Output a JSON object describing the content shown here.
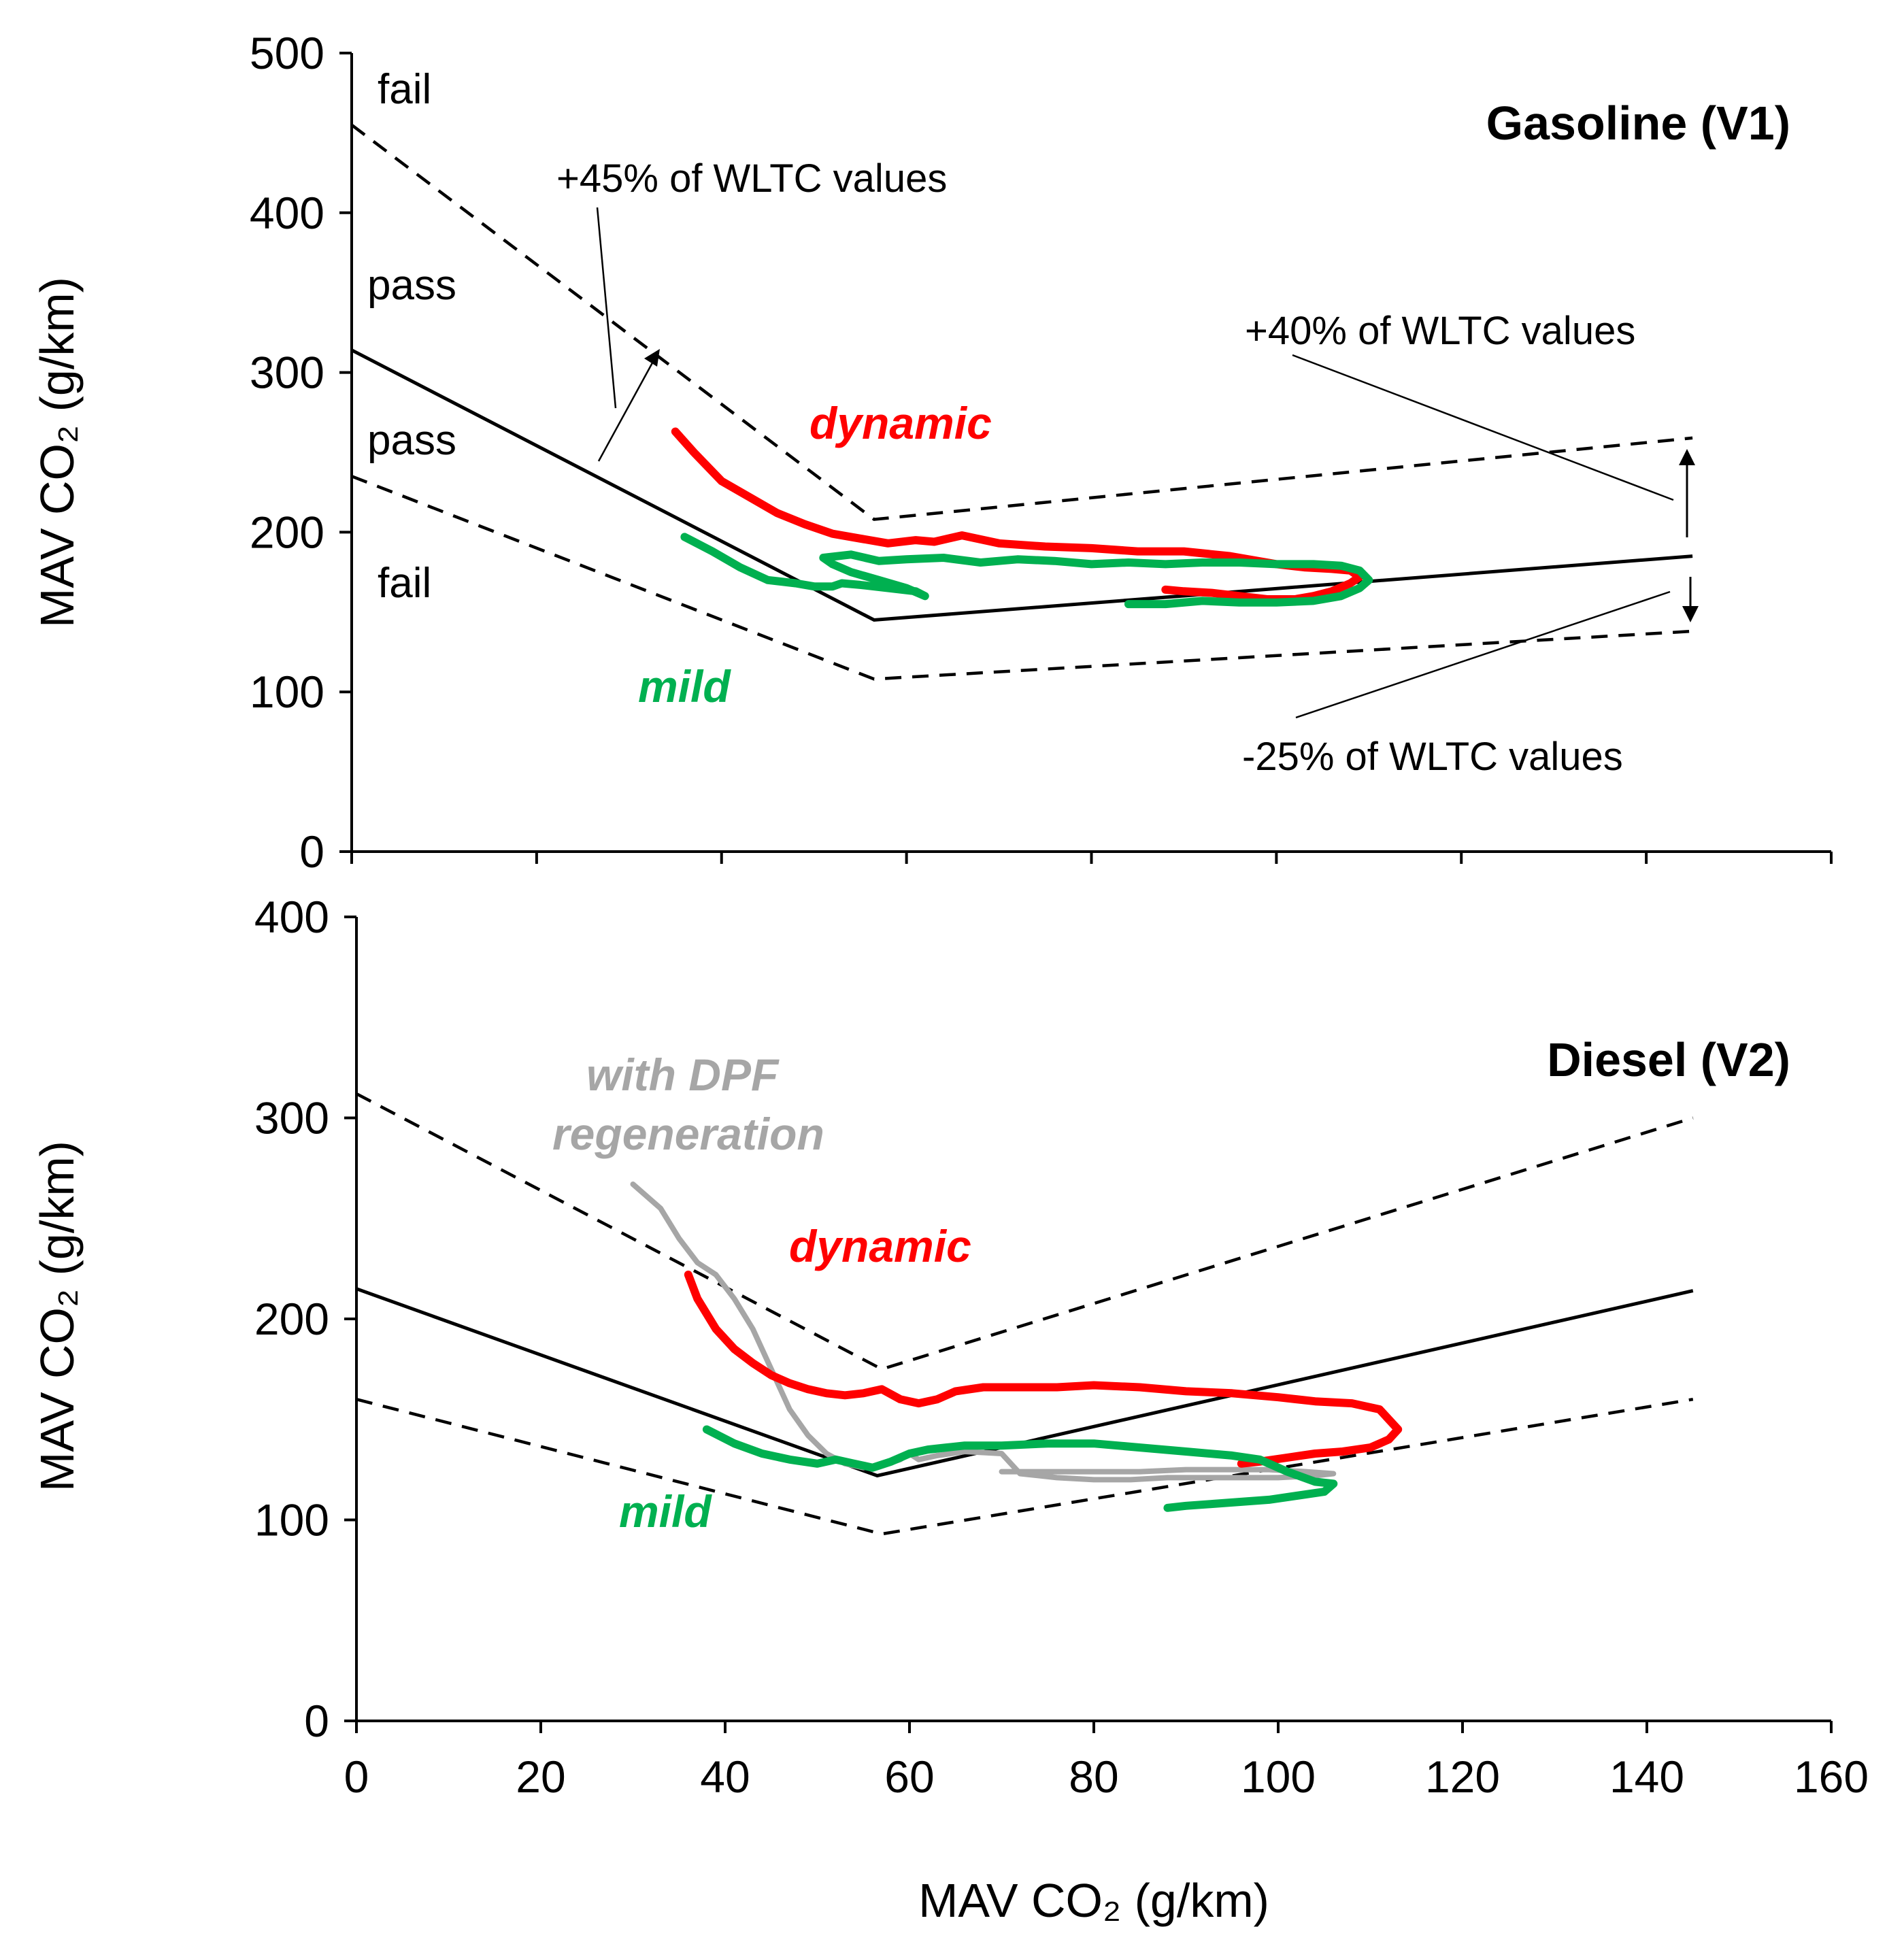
{
  "chart_data": [
    {
      "type": "line",
      "title": "Gasoline (V1)",
      "xlabel": "",
      "ylabel": "MAV CO₂ (g/km)",
      "xlim": [
        0,
        160
      ],
      "ylim": [
        0,
        500
      ],
      "xticks": [
        0,
        20,
        40,
        60,
        80,
        100,
        120,
        140,
        160
      ],
      "yticks": [
        0,
        100,
        200,
        300,
        400,
        500
      ],
      "xtick_labels_shown": false,
      "reference_lines": [
        {
          "name": "reference",
          "style": "solid",
          "x": [
            0,
            56.5,
            145
          ],
          "y": [
            314,
            145,
            185
          ]
        },
        {
          "name": "upper tolerance (+45% / +40%)",
          "style": "dashed",
          "x": [
            0,
            56.5,
            145
          ],
          "y": [
            455,
            208,
            259
          ]
        },
        {
          "name": "lower tolerance (-25%)",
          "style": "dashed",
          "x": [
            0,
            56.5,
            145
          ],
          "y": [
            235,
            108,
            138
          ]
        }
      ],
      "series": [
        {
          "name": "dynamic",
          "color": "#ff0000",
          "x": [
            35,
            37,
            40,
            43,
            46,
            49,
            52,
            55,
            58,
            61,
            63,
            66,
            70,
            75,
            80,
            85,
            90,
            95,
            100,
            103,
            106,
            108,
            109,
            108,
            106,
            104,
            102,
            99,
            96,
            93,
            90,
            88
          ],
          "y": [
            263,
            250,
            232,
            222,
            212,
            205,
            199,
            196,
            193,
            195,
            194,
            198,
            193,
            191,
            190,
            188,
            188,
            185,
            180,
            178,
            177,
            176,
            172,
            168,
            163,
            160,
            158,
            158,
            160,
            162,
            163,
            164
          ]
        },
        {
          "name": "mild",
          "color": "#00b050",
          "x": [
            36,
            39,
            42,
            45,
            48,
            50,
            52,
            53,
            55,
            58,
            61,
            62,
            60,
            57,
            54,
            52,
            51,
            54,
            57,
            60,
            64,
            68,
            72,
            76,
            80,
            84,
            88,
            92,
            96,
            100,
            104,
            107,
            109,
            110,
            109,
            107,
            104,
            100,
            96,
            92,
            88,
            84
          ],
          "y": [
            197,
            188,
            178,
            170,
            168,
            166,
            166,
            168,
            167,
            165,
            163,
            160,
            165,
            170,
            175,
            180,
            184,
            186,
            182,
            183,
            184,
            181,
            183,
            182,
            180,
            181,
            180,
            181,
            181,
            180,
            180,
            179,
            176,
            170,
            165,
            160,
            157,
            156,
            156,
            157,
            155,
            155
          ]
        }
      ],
      "annotations": {
        "upper_45": "+45% of WLTC values",
        "upper_40": "+40% of WLTC values",
        "lower_25": "-25% of WLTC values",
        "zone_fail_top": "fail",
        "zone_pass_upper": "pass",
        "zone_pass_lower": "pass",
        "zone_fail_bottom": "fail",
        "label_dynamic": "dynamic",
        "label_mild": "mild"
      }
    },
    {
      "type": "line",
      "title": "Diesel (V2)",
      "xlabel": "MAV CO₂ (g/km)",
      "ylabel": "MAV CO₂ (g/km)",
      "xlim": [
        0,
        160
      ],
      "ylim": [
        0,
        400
      ],
      "xticks": [
        0,
        20,
        40,
        60,
        80,
        100,
        120,
        140,
        160
      ],
      "yticks": [
        0,
        100,
        200,
        300,
        400
      ],
      "reference_lines": [
        {
          "name": "reference",
          "style": "solid",
          "x": [
            0,
            56.5,
            145
          ],
          "y": [
            215,
            122,
            214
          ]
        },
        {
          "name": "upper tolerance",
          "style": "dashed",
          "x": [
            0,
            57,
            145
          ],
          "y": [
            312,
            175,
            300
          ]
        },
        {
          "name": "lower tolerance",
          "style": "dashed",
          "x": [
            0,
            57,
            145
          ],
          "y": [
            160,
            93,
            160
          ]
        }
      ],
      "series": [
        {
          "name": "with DPF regeneration",
          "color": "#a6a6a6",
          "x": [
            30,
            33,
            35,
            37,
            39,
            41,
            43,
            45,
            47,
            49,
            51,
            53,
            55,
            57,
            59,
            60,
            61,
            63,
            66,
            70,
            72,
            76,
            80,
            84,
            88,
            92,
            96,
            100,
            104,
            106,
            103,
            99,
            95,
            90,
            85,
            80,
            75,
            70
          ],
          "y": [
            267,
            255,
            240,
            228,
            222,
            210,
            195,
            175,
            155,
            142,
            133,
            128,
            126,
            127,
            130,
            133,
            130,
            132,
            134,
            133,
            123,
            121,
            120,
            120,
            121,
            121,
            121,
            121,
            122,
            123,
            124,
            125,
            125,
            125,
            124,
            124,
            124,
            124
          ]
        },
        {
          "name": "dynamic",
          "color": "#ff0000",
          "x": [
            36,
            37,
            39,
            41,
            43,
            45,
            47,
            49,
            51,
            53,
            55,
            57,
            59,
            61,
            63,
            65,
            68,
            72,
            76,
            80,
            85,
            90,
            95,
            100,
            104,
            108,
            111,
            113,
            112,
            110,
            107,
            104,
            101,
            98,
            96
          ],
          "y": [
            222,
            210,
            195,
            185,
            178,
            172,
            168,
            165,
            163,
            162,
            163,
            165,
            160,
            158,
            160,
            164,
            166,
            166,
            166,
            167,
            166,
            164,
            163,
            161,
            159,
            158,
            155,
            145,
            140,
            136,
            134,
            133,
            131,
            129,
            128
          ]
        },
        {
          "name": "mild",
          "color": "#00b050",
          "x": [
            38,
            41,
            44,
            47,
            50,
            52,
            54,
            56,
            58,
            60,
            62,
            64,
            66,
            70,
            75,
            80,
            85,
            90,
            95,
            98,
            101,
            104,
            106,
            105,
            102,
            99,
            96,
            93,
            90,
            88
          ],
          "y": [
            145,
            138,
            133,
            130,
            128,
            130,
            128,
            126,
            129,
            133,
            135,
            136,
            137,
            137,
            138,
            138,
            136,
            134,
            132,
            130,
            124,
            119,
            118,
            114,
            112,
            110,
            109,
            108,
            107,
            106
          ]
        }
      ],
      "annotations": {
        "label_dpf_line1": "with DPF",
        "label_dpf_line2": "regeneration",
        "label_dynamic": "dynamic",
        "label_mild": "mild"
      }
    }
  ]
}
